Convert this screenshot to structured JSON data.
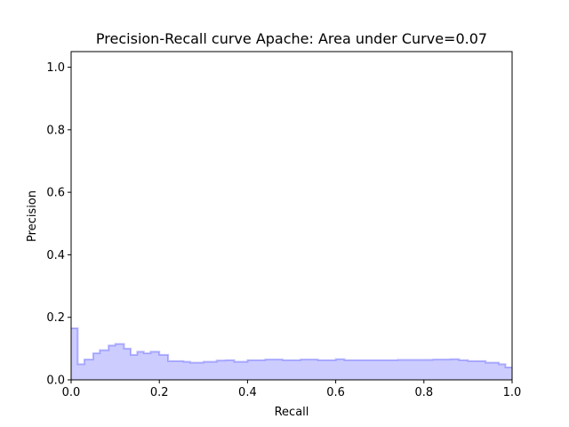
{
  "chart_data": {
    "type": "area",
    "title": "Precision-Recall curve Apache: Area under Curve=0.07",
    "xlabel": "Recall",
    "ylabel": "Precision",
    "xlim": [
      0.0,
      1.0
    ],
    "ylim": [
      0.0,
      1.05
    ],
    "xticks": [
      "0.0",
      "0.2",
      "0.4",
      "0.6",
      "0.8",
      "1.0"
    ],
    "yticks": [
      "0.0",
      "0.2",
      "0.4",
      "0.6",
      "0.8",
      "1.0"
    ],
    "grid": false,
    "step": "post",
    "color": "#0000ff",
    "series": [
      {
        "x": [
          0.0,
          0.015,
          0.03,
          0.05,
          0.065,
          0.085,
          0.1,
          0.12,
          0.135,
          0.15,
          0.165,
          0.18,
          0.2,
          0.22,
          0.24,
          0.255,
          0.27,
          0.3,
          0.33,
          0.35,
          0.37,
          0.4,
          0.44,
          0.48,
          0.52,
          0.56,
          0.6,
          0.62,
          0.66,
          0.7,
          0.74,
          0.78,
          0.82,
          0.86,
          0.88,
          0.9,
          0.92,
          0.94,
          0.97,
          0.985,
          1.0
        ],
        "y": [
          0.165,
          0.05,
          0.065,
          0.085,
          0.095,
          0.11,
          0.115,
          0.1,
          0.08,
          0.09,
          0.085,
          0.09,
          0.08,
          0.06,
          0.06,
          0.058,
          0.055,
          0.058,
          0.062,
          0.063,
          0.058,
          0.063,
          0.065,
          0.063,
          0.065,
          0.063,
          0.066,
          0.063,
          0.063,
          0.063,
          0.064,
          0.064,
          0.065,
          0.066,
          0.063,
          0.06,
          0.06,
          0.055,
          0.05,
          0.04,
          0.04
        ]
      }
    ]
  }
}
